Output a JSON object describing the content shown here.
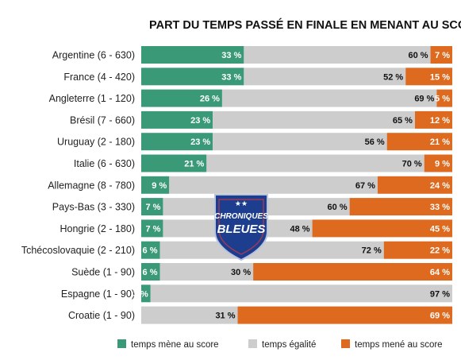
{
  "chart_data": {
    "type": "bar",
    "stacked": true,
    "orientation": "horizontal",
    "title": "PART DU TEMPS PASSÉ EN FINALE EN MENANT AU SCORE",
    "categories": [
      "Argentine (6 - 630)",
      "France (4 - 420)",
      "Angleterre (1 - 120)",
      "Brésil (7 - 660)",
      "Uruguay (2 - 180)",
      "Italie (6 - 630)",
      "Allemagne (8 - 780)",
      "Pays-Bas (3 - 330)",
      "Hongrie (2 - 180)",
      "Tchécoslovaquie (2 - 210)",
      "Suède (1 - 90)",
      "Espagne (1 - 90)",
      "Croatie (1 - 90)"
    ],
    "series": [
      {
        "name": "temps mène au score",
        "color": "#3a9a78",
        "values": [
          33,
          33,
          26,
          23,
          23,
          21,
          9,
          7,
          7,
          6,
          6,
          3,
          0
        ]
      },
      {
        "name": "temps égalité",
        "color": "#cdcdcd",
        "values": [
          60,
          52,
          69,
          65,
          56,
          70,
          67,
          60,
          48,
          72,
          30,
          97,
          31
        ]
      },
      {
        "name": "temps mené au score",
        "color": "#dd6a1f",
        "values": [
          7,
          15,
          5,
          12,
          21,
          9,
          24,
          33,
          45,
          22,
          64,
          0,
          69
        ]
      }
    ],
    "value_suffix": " %",
    "xlim": [
      0,
      100
    ],
    "legend_position": "bottom",
    "grid": false
  },
  "logo": {
    "line1": "CHRONIQUES",
    "line2": "BLEUES",
    "stars": "★★"
  }
}
